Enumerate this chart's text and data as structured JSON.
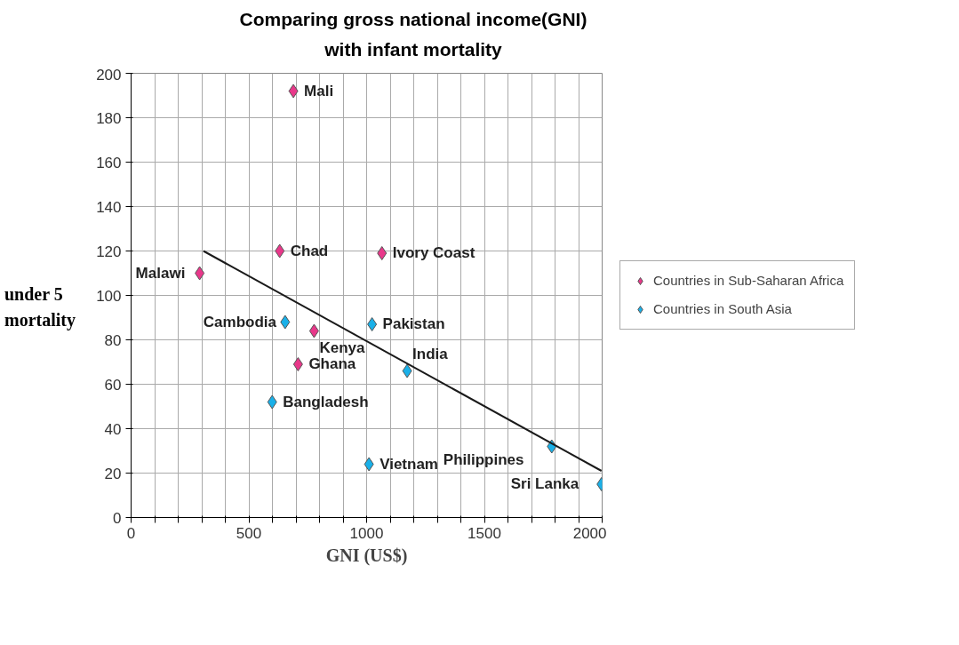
{
  "chart_data": {
    "type": "scatter",
    "title": "Comparing gross national income(GNI) with infant mortality",
    "xlabel": "GNI (US$)",
    "ylabel": "under 5 mortality",
    "series": [
      {
        "name": "Countries in Sub-Saharan Africa",
        "color": "#e8388a",
        "x": [
          689,
          631,
          1065,
          291,
          777,
          709
        ],
        "values": [
          192,
          120,
          119,
          110,
          84,
          69
        ],
        "value_labels": [
          "Mali",
          "Chad",
          "Ivory Coast",
          "Malawi",
          "Kenya",
          "Ghana"
        ]
      },
      {
        "name": "Countries in South Asia",
        "color": "#1ab0e8",
        "x": [
          654,
          1023,
          1172,
          599,
          1010,
          1786,
          1997
        ],
        "values": [
          88,
          87,
          66,
          52,
          24,
          32,
          15
        ],
        "value_labels": [
          "Cambodia",
          "Pakistan",
          "India",
          "Bangladesh",
          "Vietnam",
          "Philippines",
          "Sri Lanka"
        ]
      },
      {
        "type": "line",
        "marker": "none",
        "color": "#1a1a1a",
        "x": [
          307,
          1997
        ],
        "values": [
          120,
          21
        ]
      }
    ],
    "xlim": [
      0,
      2000
    ],
    "ylim": [
      0,
      200
    ],
    "xticks": [
      0,
      {
        "value": 100,
        "label": null
      },
      {
        "value": 200,
        "label": null
      },
      {
        "value": 300,
        "label": null
      },
      {
        "value": 400,
        "label": null
      },
      500,
      {
        "value": 600,
        "label": null
      },
      {
        "value": 700,
        "label": null
      },
      {
        "value": 800,
        "label": null
      },
      {
        "value": 900,
        "label": null
      },
      1000,
      {
        "value": 1100,
        "label": null
      },
      {
        "value": 1200,
        "label": null
      },
      {
        "value": 1300,
        "label": null
      },
      {
        "value": 1400,
        "label": null
      },
      1500,
      {
        "value": 1600,
        "label": null
      },
      {
        "value": 1700,
        "label": null
      },
      {
        "value": 1800,
        "label": null
      },
      {
        "value": 1900,
        "label": null
      },
      2000
    ],
    "yticks": [
      0,
      20,
      40,
      60,
      80,
      100,
      120,
      140,
      160,
      180,
      200
    ],
    "grid": true,
    "legend": "right",
    "marker": "diamond"
  }
}
